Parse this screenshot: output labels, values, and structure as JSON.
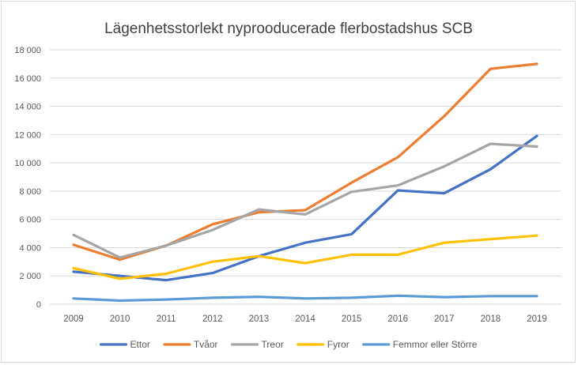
{
  "chart_data": {
    "type": "line",
    "title": "Lägenhetsstorlekt nyprooducerade flerbostadshus SCB",
    "xlabel": "",
    "ylabel": "",
    "x": [
      "2009",
      "2010",
      "2011",
      "2012",
      "2013",
      "2014",
      "2015",
      "2016",
      "2017",
      "2018",
      "2019"
    ],
    "ylim": [
      0,
      18000
    ],
    "yticks": [
      0,
      2000,
      4000,
      6000,
      8000,
      10000,
      12000,
      14000,
      16000,
      18000
    ],
    "ytick_labels": [
      "0",
      "2 000",
      "4 000",
      "6 000",
      "8 000",
      "10 000",
      "12 000",
      "14 000",
      "16 000",
      "18 000"
    ],
    "grid": true,
    "legend_position": "bottom",
    "series": [
      {
        "name": "Ettor",
        "color": "#4472c4",
        "values": [
          2300,
          2000,
          1700,
          2200,
          3400,
          4350,
          4950,
          8050,
          7850,
          9550,
          11900
        ]
      },
      {
        "name": "Tvåor",
        "color": "#ed7d31",
        "values": [
          4200,
          3150,
          4150,
          5650,
          6500,
          6650,
          8600,
          10400,
          13300,
          16650,
          17000
        ]
      },
      {
        "name": "Treor",
        "color": "#a5a5a5",
        "values": [
          4900,
          3300,
          4150,
          5250,
          6700,
          6350,
          7950,
          8400,
          9750,
          11350,
          11150
        ]
      },
      {
        "name": "Fyror",
        "color": "#ffc000",
        "values": [
          2550,
          1800,
          2150,
          3000,
          3400,
          2900,
          3500,
          3500,
          4350,
          4600,
          4850
        ]
      },
      {
        "name": "Femmor eller Större",
        "color": "#5b9bd5",
        "values": [
          400,
          250,
          330,
          450,
          520,
          400,
          450,
          600,
          500,
          570,
          570
        ]
      }
    ]
  }
}
